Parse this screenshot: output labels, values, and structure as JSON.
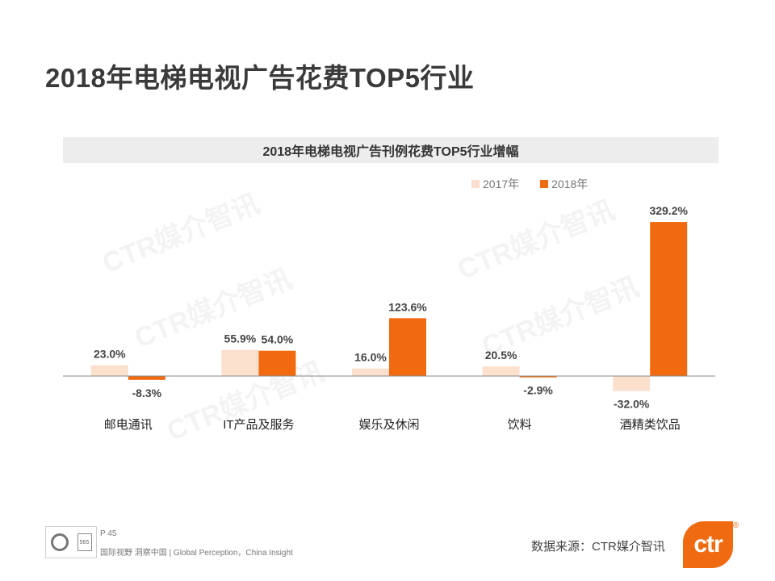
{
  "page_title": "2018年电梯电视广告花费TOP5行业",
  "chart_data": {
    "type": "bar",
    "title": "2018年电梯电视广告刊例花费TOP5行业增幅",
    "categories": [
      "邮电通讯",
      "IT产品及服务",
      "娱乐及休闲",
      "饮料",
      "酒精类饮品"
    ],
    "series": [
      {
        "name": "2017年",
        "values": [
          23.0,
          55.9,
          16.0,
          20.5,
          -32.0
        ],
        "labels": [
          "23.0%",
          "55.9%",
          "16.0%",
          "20.5%",
          "-32.0%"
        ],
        "color": "#fbe0cd"
      },
      {
        "name": "2018年",
        "values": [
          -8.3,
          54.0,
          123.6,
          -2.9,
          329.2
        ],
        "labels": [
          "-8.3%",
          "54.0%",
          "123.6%",
          "-2.9%",
          "329.2%"
        ],
        "color": "#f26a10"
      }
    ],
    "xlabel": "",
    "ylabel": "",
    "ylim": [
      -32.0,
      329.2
    ],
    "legend": "top-right",
    "grid": false
  },
  "watermarks": [
    "CTR媒介智讯",
    "CTR媒介智讯",
    "CTR媒介智讯",
    "CTR媒介智讯",
    "CTR媒介智讯"
  ],
  "footer": {
    "page_number": "P 45",
    "tagline": "国际视野  洞察中国 |  Global Perception，China Insight",
    "badge_text": "565",
    "source": "数据来源：CTR媒介智讯",
    "logo_text": "ctr",
    "logo_mark": "®"
  }
}
